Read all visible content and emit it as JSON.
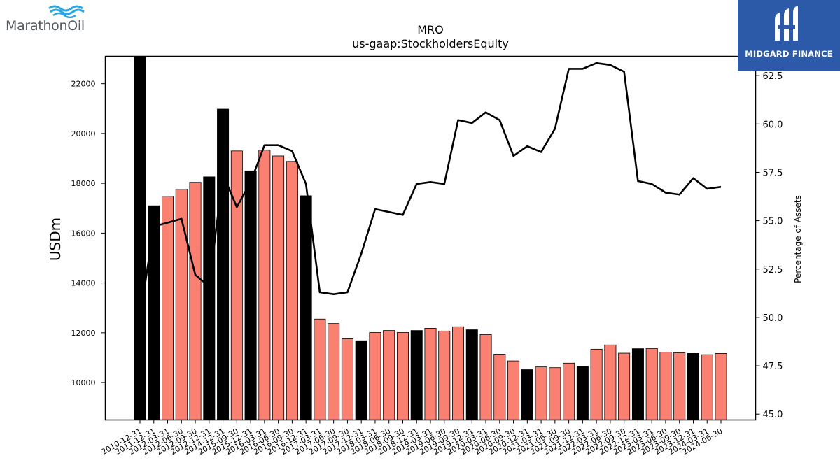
{
  "branding": {
    "left_logo_text": "MarathonOil",
    "right_logo_text": "MIDGARD FINANCE"
  },
  "colors": {
    "bar_highlight": "#000000",
    "bar_default": "#fa8072",
    "line": "#000000",
    "marathon_blue": "#2aa6e0",
    "midgard_bg": "#2d5aa8"
  },
  "chart_data": {
    "type": "bar",
    "title": "MRO",
    "subtitle": "us-gaap:StockholdersEquity",
    "ylabel": "USDm",
    "y2label": "Percentage of Assets",
    "ylim": [
      8500,
      23100
    ],
    "y2lim": [
      44.7,
      63.5
    ],
    "yticks": [
      10000,
      12000,
      14000,
      16000,
      18000,
      20000,
      22000
    ],
    "y2ticks": [
      "45.0",
      "47.5",
      "50.0",
      "52.5",
      "55.0",
      "57.5",
      "60.0",
      "62.5"
    ],
    "categories": [
      "2010-12-31",
      "2011-12-31",
      "2012-03-31",
      "2012-06-30",
      "2012-09-30",
      "2012-12-31",
      "2014-12-31",
      "2015-09-30",
      "2015-12-31",
      "2016-03-31",
      "2016-06-30",
      "2016-09-30",
      "2016-12-31",
      "2017-03-31",
      "2017-06-30",
      "2017-09-30",
      "2017-12-31",
      "2018-03-31",
      "2018-06-30",
      "2018-09-30",
      "2018-12-31",
      "2019-03-31",
      "2019-06-30",
      "2019-09-30",
      "2019-12-31",
      "2020-03-31",
      "2020-06-30",
      "2020-09-30",
      "2020-12-31",
      "2021-03-31",
      "2021-06-30",
      "2021-09-30",
      "2021-12-31",
      "2022-03-31",
      "2022-06-30",
      "2022-09-30",
      "2022-12-31",
      "2023-03-31",
      "2023-06-30",
      "2023-09-30",
      "2023-12-31",
      "2024-03-31",
      "2024-06-30"
    ],
    "series": [
      {
        "kind": "bar",
        "values": [
          23200,
          17100,
          17480,
          17760,
          18040,
          18260,
          20980,
          19300,
          18500,
          19330,
          19100,
          18880,
          17500,
          12550,
          12370,
          11760,
          11680,
          12010,
          12090,
          12010,
          12090,
          12180,
          12070,
          12240,
          12120,
          11930,
          11140,
          10870,
          10520,
          10630,
          10600,
          10780,
          10650,
          11340,
          11510,
          11180,
          11360,
          11370,
          11220,
          11200,
          11170,
          11120,
          11170
        ],
        "highlight": [
          true,
          true,
          false,
          false,
          false,
          true,
          true,
          false,
          true,
          false,
          false,
          false,
          true,
          false,
          false,
          false,
          true,
          false,
          false,
          false,
          true,
          false,
          false,
          false,
          true,
          false,
          false,
          false,
          true,
          false,
          false,
          false,
          true,
          false,
          false,
          false,
          true,
          false,
          false,
          false,
          true,
          false,
          false
        ]
      },
      {
        "kind": "line",
        "axis": "right",
        "values": [
          50.0,
          54.7,
          54.9,
          55.1,
          52.2,
          51.6,
          57.4,
          55.7,
          57.0,
          58.9,
          58.9,
          58.6,
          56.9,
          51.3,
          51.2,
          51.3,
          53.3,
          55.6,
          55.45,
          55.3,
          56.9,
          57.0,
          56.9,
          60.2,
          60.05,
          60.6,
          60.2,
          58.35,
          58.85,
          58.55,
          59.75,
          62.85,
          62.85,
          63.15,
          63.05,
          62.7,
          57.05,
          56.9,
          56.45,
          56.35,
          57.2,
          56.65,
          56.75
        ]
      }
    ]
  }
}
